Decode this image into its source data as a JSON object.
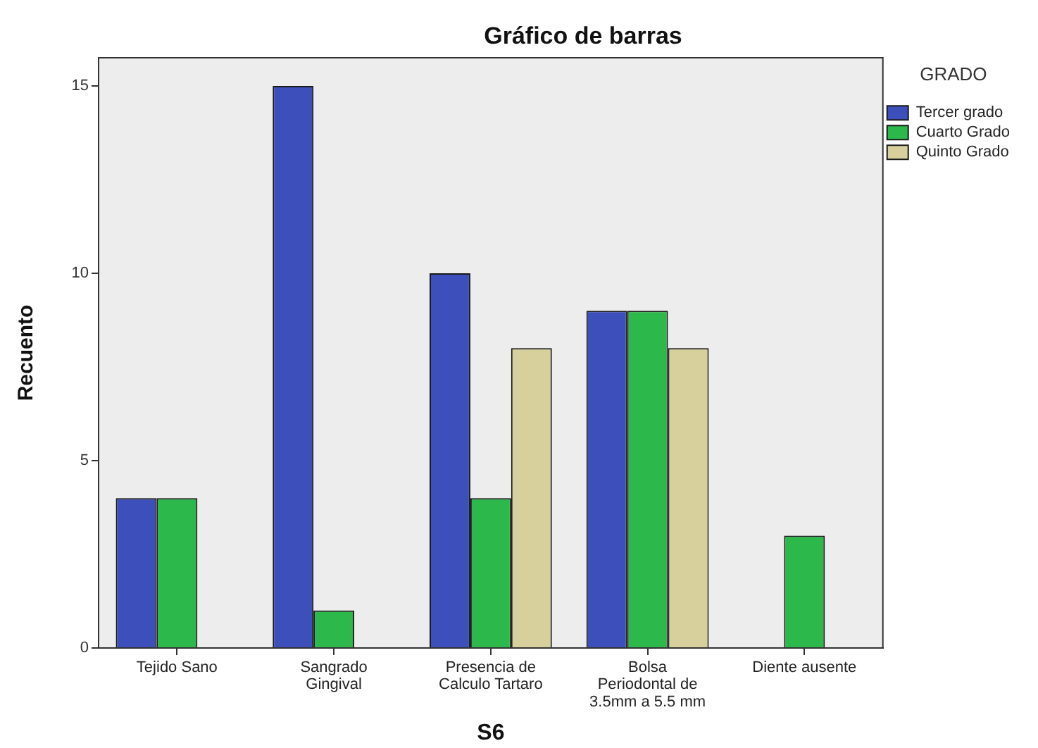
{
  "chart_data": {
    "type": "bar",
    "title": "Gráfico de barras",
    "xlabel": "S6",
    "ylabel": "Recuento",
    "legend_title": "GRADO",
    "categories": [
      "Tejido Sano",
      "Sangrado\nGingival",
      "Presencia de\nCalculo Tartaro",
      "Bolsa\nPeriodontal de\n3.5mm a 5.5 mm",
      "Diente ausente"
    ],
    "series": [
      {
        "name": "Tercer grado",
        "color": "#3c4fba",
        "values": [
          4,
          15,
          10,
          9,
          null
        ]
      },
      {
        "name": "Cuarto Grado",
        "color": "#2db84b",
        "values": [
          4,
          1,
          4,
          9,
          3
        ]
      },
      {
        "name": "Quinto Grado",
        "color": "#d8d09c",
        "values": [
          null,
          null,
          8,
          8,
          null
        ]
      }
    ],
    "ylim": [
      0,
      15.75
    ],
    "yticks": [
      0,
      5,
      10,
      15
    ],
    "grid": false,
    "legend": "top right"
  }
}
